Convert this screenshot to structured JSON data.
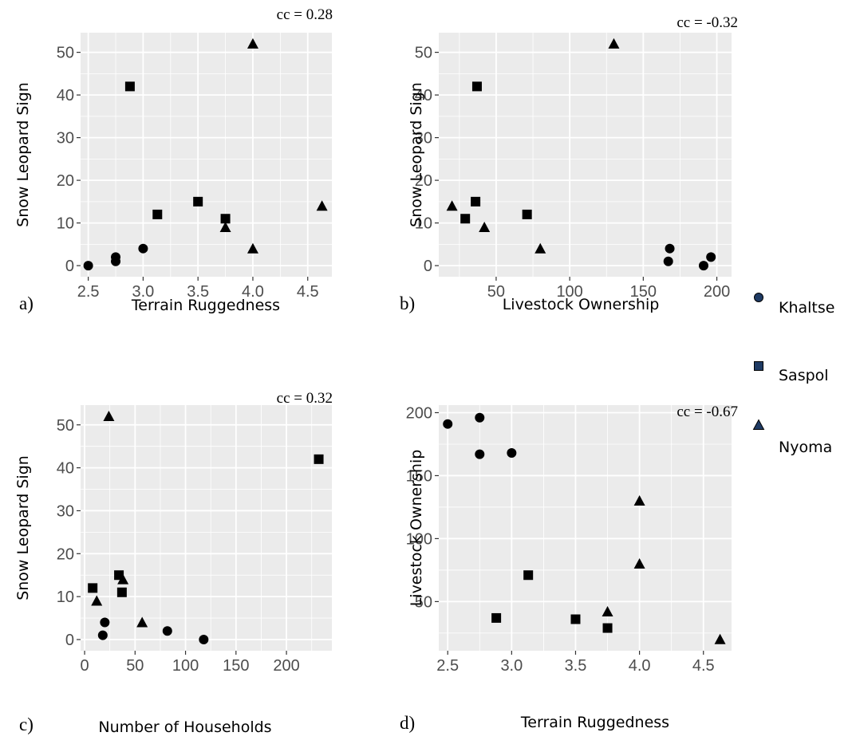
{
  "colors": {
    "panel_bg": "#ebebeb",
    "grid": "#ffffff",
    "marker": "#000000",
    "legend_marker": "#1f3b64"
  },
  "legend": {
    "entries": [
      {
        "label": "Khaltse",
        "shape": "circle"
      },
      {
        "label": "Saspol",
        "shape": "square"
      },
      {
        "label": "Nyoma",
        "shape": "triangle"
      }
    ]
  },
  "chart_data": [
    {
      "type": "scatter",
      "panel_label": "a)",
      "annotation": "cc = 0.28",
      "xlabel": "Terrain Ruggedness",
      "ylabel": "Snow Leopard Sign",
      "xlim": [
        2.43,
        4.72
      ],
      "ylim": [
        -2.6,
        54.6
      ],
      "xticks": [
        2.5,
        3.0,
        3.5,
        4.0,
        4.5
      ],
      "xticklabels": [
        "2.5",
        "3.0",
        "3.5",
        "4.0",
        "4.5"
      ],
      "yticks": [
        0,
        10,
        20,
        30,
        40,
        50
      ],
      "yticklabels": [
        "0",
        "10",
        "20",
        "30",
        "40",
        "50"
      ],
      "series": [
        {
          "name": "Khaltse",
          "shape": "circle",
          "x": [
            2.5,
            2.75,
            2.75,
            3.0
          ],
          "y": [
            0,
            1,
            2,
            4
          ]
        },
        {
          "name": "Saspol",
          "shape": "square",
          "x": [
            2.88,
            3.13,
            3.5,
            3.75
          ],
          "y": [
            42,
            12,
            15,
            11
          ]
        },
        {
          "name": "Nyoma",
          "shape": "triangle",
          "x": [
            4.0,
            3.75,
            4.0,
            4.63
          ],
          "y": [
            52,
            9,
            4,
            14
          ]
        }
      ]
    },
    {
      "type": "scatter",
      "panel_label": "b)",
      "annotation": "cc = -0.32",
      "xlabel": "Livestock Ownership",
      "ylabel": "Snow Leopard Sign",
      "xlim": [
        11,
        210
      ],
      "ylim": [
        -2.6,
        54.6
      ],
      "xticks": [
        50,
        100,
        150,
        200
      ],
      "xticklabels": [
        "50",
        "100",
        "150",
        "200"
      ],
      "yticks": [
        0,
        10,
        20,
        30,
        40,
        50
      ],
      "yticklabels": [
        "0",
        "10",
        "20",
        "30",
        "40",
        "50"
      ],
      "series": [
        {
          "name": "Khaltse",
          "shape": "circle",
          "x": [
            168,
            167,
            191,
            196
          ],
          "y": [
            4,
            1,
            0,
            2
          ]
        },
        {
          "name": "Saspol",
          "shape": "square",
          "x": [
            37,
            29,
            36,
            71
          ],
          "y": [
            42,
            11,
            15,
            12
          ]
        },
        {
          "name": "Nyoma",
          "shape": "triangle",
          "x": [
            130,
            20,
            42,
            80
          ],
          "y": [
            52,
            14,
            9,
            4
          ]
        }
      ]
    },
    {
      "type": "scatter",
      "panel_label": "c)",
      "annotation": "cc = 0.32",
      "xlabel": "Number of Households",
      "ylabel": "Snow Leopard Sign",
      "xlim": [
        -4,
        245
      ],
      "ylim": [
        -2.6,
        54.6
      ],
      "xticks": [
        0,
        50,
        100,
        150,
        200
      ],
      "xticklabels": [
        "0",
        "50",
        "100",
        "150",
        "200"
      ],
      "yticks": [
        0,
        10,
        20,
        30,
        40,
        50
      ],
      "yticklabels": [
        "0",
        "10",
        "20",
        "30",
        "40",
        "50"
      ],
      "series": [
        {
          "name": "Khaltse",
          "shape": "circle",
          "x": [
            20,
            18,
            82,
            118
          ],
          "y": [
            4,
            1,
            2,
            0
          ]
        },
        {
          "name": "Saspol",
          "shape": "square",
          "x": [
            232,
            8,
            34,
            37
          ],
          "y": [
            42,
            12,
            15,
            11
          ]
        },
        {
          "name": "Nyoma",
          "shape": "triangle",
          "x": [
            24,
            12,
            38,
            57
          ],
          "y": [
            52,
            9,
            14,
            4
          ]
        }
      ]
    },
    {
      "type": "scatter",
      "panel_label": "d)",
      "annotation": "cc = -0.67",
      "xlabel": "Terrain Ruggedness",
      "ylabel": "Livestock Ownership",
      "xlim": [
        2.43,
        4.72
      ],
      "ylim": [
        11,
        206
      ],
      "xticks": [
        2.5,
        3.0,
        3.5,
        4.0,
        4.5
      ],
      "xticklabels": [
        "2.5",
        "3.0",
        "3.5",
        "4.0",
        "4.5"
      ],
      "yticks": [
        50,
        100,
        150,
        200
      ],
      "yticklabels": [
        "50",
        "100",
        "150",
        "200"
      ],
      "series": [
        {
          "name": "Khaltse",
          "shape": "circle",
          "x": [
            2.5,
            2.75,
            2.75,
            3.0
          ],
          "y": [
            191,
            196,
            167,
            168
          ]
        },
        {
          "name": "Saspol",
          "shape": "square",
          "x": [
            2.88,
            3.13,
            3.5,
            3.75
          ],
          "y": [
            37,
            71,
            36,
            29
          ]
        },
        {
          "name": "Nyoma",
          "shape": "triangle",
          "x": [
            4.0,
            4.0,
            3.75,
            4.63
          ],
          "y": [
            130,
            80,
            42,
            20
          ]
        }
      ]
    }
  ]
}
